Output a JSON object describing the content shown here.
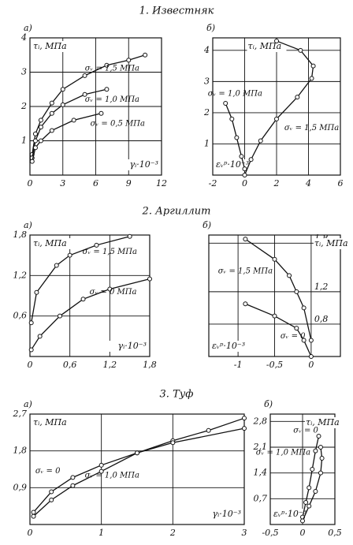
{
  "chart_data": [
    {
      "type": "line",
      "title": "1. Известняк",
      "panel": "а)",
      "ylabel": "τᵢ, МПа",
      "xlabel": "γᵢ·10⁻³",
      "grid": true,
      "color": "#111",
      "xlim": [
        0,
        12
      ],
      "ylim": [
        0,
        4
      ],
      "xticks": [
        0,
        3,
        6,
        9,
        12
      ],
      "yticks": [
        1,
        2,
        3,
        4
      ],
      "series": [
        {
          "name": "σᵥ = 1,5 МПа",
          "x": [
            0.2,
            0.5,
            1,
            2,
            3,
            5,
            7,
            9,
            10.5
          ],
          "values": [
            0.6,
            1.2,
            1.6,
            2.1,
            2.5,
            2.9,
            3.2,
            3.35,
            3.5
          ]
        },
        {
          "name": "σᵥ = 1,0 МПа",
          "x": [
            0.2,
            0.5,
            1,
            2,
            3,
            5,
            7
          ],
          "values": [
            0.5,
            1.0,
            1.4,
            1.8,
            2.05,
            2.35,
            2.5
          ]
        },
        {
          "name": "σᵥ = 0,5 МПа",
          "x": [
            0.2,
            0.5,
            1,
            2,
            4,
            6.5
          ],
          "values": [
            0.4,
            0.8,
            1.0,
            1.3,
            1.6,
            1.8
          ]
        }
      ]
    },
    {
      "type": "line",
      "panel": "б)",
      "ylabel": "τᵢ, МПа",
      "xlabel": "εᵥᵖ·10⁻³",
      "grid": true,
      "color": "#111",
      "xlim": [
        -2,
        6
      ],
      "ylim": [
        0,
        4.4
      ],
      "xticks": [
        -2,
        0,
        2,
        4,
        6
      ],
      "yticks": [
        1,
        2,
        3,
        4
      ],
      "series": [
        {
          "name": "σᵥ = 1,0 МПа",
          "x": [
            0,
            -0.2,
            -0.5,
            -0.8,
            -1.2
          ],
          "values": [
            0.2,
            0.6,
            1.2,
            1.8,
            2.3
          ]
        },
        {
          "name": "σᵥ = 1,5 МПа",
          "x": [
            0,
            0.4,
            1,
            2,
            3.3,
            4.2,
            4.3,
            3.5,
            2
          ],
          "values": [
            0,
            0.5,
            1.1,
            1.8,
            2.5,
            3.1,
            3.5,
            4.0,
            4.3
          ]
        }
      ]
    },
    {
      "type": "line",
      "title": "2. Аргиллит",
      "panel": "а)",
      "ylabel": "τᵢ, МПа",
      "xlabel": "γᵢ·10⁻³",
      "grid": true,
      "color": "#111",
      "xlim": [
        0,
        1.8
      ],
      "ylim": [
        0,
        1.8
      ],
      "xticks": [
        0,
        {
          "value": 0.6,
          "label": "0,6"
        },
        {
          "value": 1.2,
          "label": "1,2"
        },
        {
          "value": 1.8,
          "label": "1,8"
        }
      ],
      "yticks": [
        {
          "value": 0.6,
          "label": "0,6"
        },
        {
          "value": 1.2,
          "label": "1,2"
        },
        {
          "value": 1.8,
          "label": "1,8"
        }
      ],
      "series": [
        {
          "name": "σᵥ = 1,5 МПа",
          "x": [
            0.02,
            0.1,
            0.4,
            0.6,
            1,
            1.5
          ],
          "values": [
            0.5,
            0.95,
            1.35,
            1.5,
            1.65,
            1.78
          ]
        },
        {
          "name": "σᵥ = 0 МПа",
          "x": [
            0.02,
            0.15,
            0.45,
            0.8,
            1.2,
            1.8
          ],
          "values": [
            0.1,
            0.3,
            0.6,
            0.85,
            1.0,
            1.15
          ]
        }
      ]
    },
    {
      "type": "line",
      "panel": "б)",
      "ylabel": "τᵢ, МПа",
      "xlabel": "εᵥᵖ·10⁻³",
      "grid": true,
      "color": "#111",
      "xlim": [
        -1.4,
        0.4
      ],
      "ylim": [
        0.4,
        1.9
      ],
      "xticks": [
        -1,
        {
          "value": -0.5,
          "label": "-0,5"
        },
        0
      ],
      "yticks": [
        {
          "value": 0.8,
          "label": "0,8"
        },
        {
          "value": 1.2,
          "label": "1,2"
        },
        {
          "value": 1.8,
          "label": "1,8"
        }
      ],
      "series": [
        {
          "name": "σᵥ = 1,5 МПа",
          "x": [
            0,
            -0.1,
            -0.2,
            -0.3,
            -0.5,
            -0.9
          ],
          "values": [
            0.6,
            1.0,
            1.2,
            1.4,
            1.6,
            1.85
          ]
        },
        {
          "name": "σᵥ = 0",
          "x": [
            0,
            -0.1,
            -0.2,
            -0.5,
            -0.9
          ],
          "values": [
            0.4,
            0.6,
            0.75,
            0.9,
            1.05
          ]
        }
      ]
    },
    {
      "type": "line",
      "title": "3. Туф",
      "panel": "а)",
      "ylabel": "τᵢ, МПа",
      "xlabel": "γᵢ·10⁻³",
      "grid": true,
      "color": "#111",
      "xlim": [
        0,
        3
      ],
      "ylim": [
        0,
        2.7
      ],
      "xticks": [
        0,
        1,
        2,
        3
      ],
      "yticks": [
        {
          "value": 0.9,
          "label": "0,9"
        },
        {
          "value": 1.8,
          "label": "1,8"
        },
        {
          "value": 2.7,
          "label": "2,7"
        }
      ],
      "series": [
        {
          "name": "σᵥ = 0",
          "x": [
            0.05,
            0.3,
            0.6,
            1,
            1.5,
            2,
            2.5,
            3
          ],
          "values": [
            0.2,
            0.6,
            0.95,
            1.3,
            1.75,
            2.05,
            2.3,
            2.6
          ]
        },
        {
          "name": "σᵥ = 1,0 МПа",
          "x": [
            0.05,
            0.3,
            0.6,
            1,
            1.5,
            2,
            3
          ],
          "values": [
            0.3,
            0.8,
            1.15,
            1.45,
            1.75,
            2.0,
            2.35
          ]
        }
      ]
    },
    {
      "type": "line",
      "panel": "б)",
      "ylabel": "τᵢ, МПа",
      "xlabel": "εᵥᵖ·10⁻³",
      "grid": true,
      "color": "#111",
      "xlim": [
        -0.5,
        0.5
      ],
      "ylim": [
        0,
        3
      ],
      "xticks": [
        {
          "value": -0.5,
          "label": "-0,5"
        },
        0,
        {
          "value": 0.5,
          "label": "0,5"
        }
      ],
      "yticks": [
        {
          "value": 0.7,
          "label": "0,7"
        },
        {
          "value": 1.4,
          "label": "1,4"
        },
        {
          "value": 2.1,
          "label": "2,1"
        },
        {
          "value": 2.8,
          "label": "2,8"
        }
      ],
      "series": [
        {
          "name": "σᵥ = 0",
          "x": [
            0,
            0.05,
            0.1,
            0.15,
            0.2,
            0.25
          ],
          "values": [
            0.2,
            0.6,
            1.0,
            1.5,
            2.0,
            2.4
          ]
        },
        {
          "name": "σᵥ = 1,0 МПа",
          "x": [
            0,
            0.1,
            0.2,
            0.28,
            0.3,
            0.28
          ],
          "values": [
            0.1,
            0.5,
            0.9,
            1.4,
            1.8,
            2.1
          ]
        }
      ]
    }
  ]
}
